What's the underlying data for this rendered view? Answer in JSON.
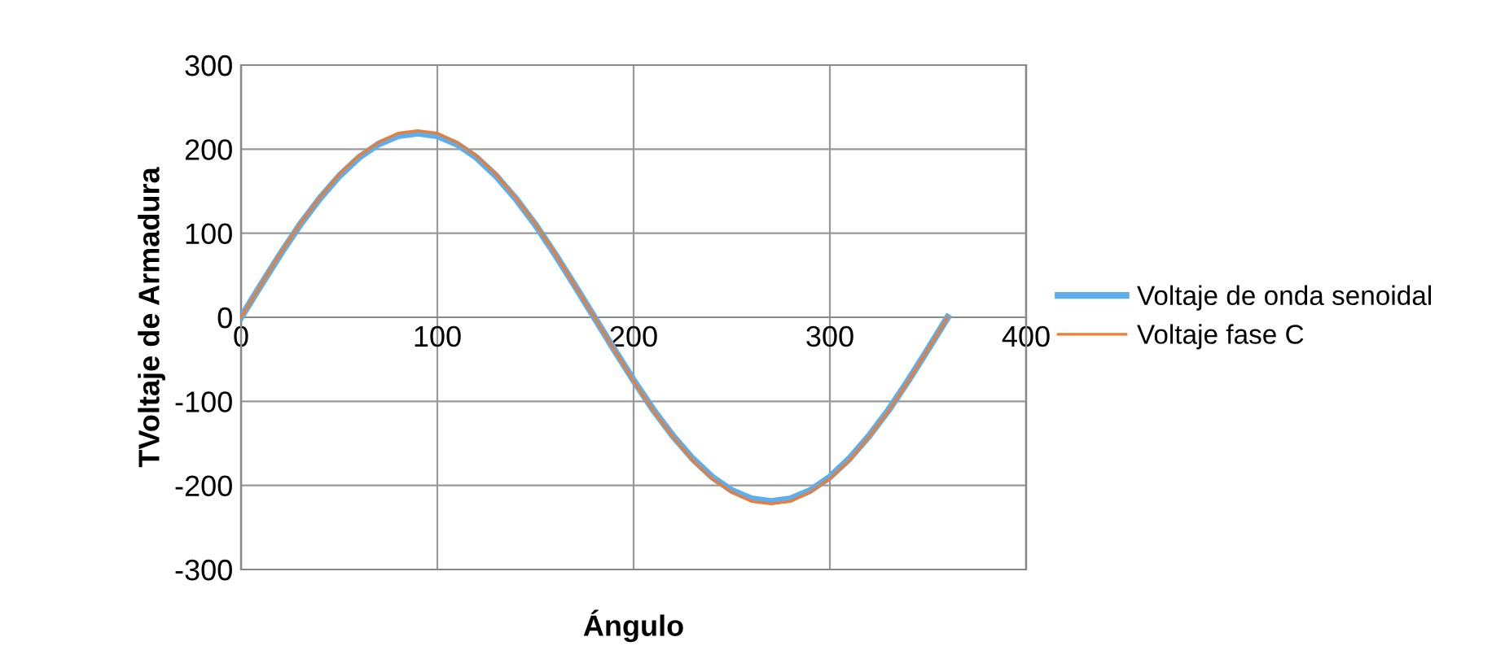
{
  "chart_data": {
    "type": "line",
    "xlabel": "Ángulo",
    "ylabel": "TVoltaje de Armadura",
    "x": [
      0,
      10,
      20,
      30,
      40,
      50,
      60,
      70,
      80,
      90,
      100,
      110,
      120,
      130,
      140,
      150,
      160,
      170,
      180,
      190,
      200,
      210,
      220,
      230,
      240,
      250,
      260,
      270,
      280,
      290,
      300,
      310,
      320,
      330,
      340,
      350,
      360
    ],
    "series": [
      {
        "name": "Voltaje de onda senoidal",
        "color": "#5eaeed",
        "values": [
          0,
          38,
          75,
          110,
          141,
          168,
          190,
          206,
          216,
          219,
          216,
          206,
          190,
          168,
          141,
          110,
          75,
          38,
          0,
          -38,
          -75,
          -110,
          -141,
          -168,
          -190,
          -206,
          -216,
          -219,
          -216,
          -206,
          -190,
          -168,
          -141,
          -110,
          -75,
          -38,
          0
        ]
      },
      {
        "name": "Voltaje fase C",
        "color": "#ed7d31",
        "values": [
          0,
          38,
          76,
          111,
          142,
          170,
          192,
          208,
          219,
          222,
          219,
          208,
          192,
          170,
          142,
          111,
          76,
          38,
          0,
          -38,
          -76,
          -111,
          -142,
          -170,
          -192,
          -208,
          -219,
          -222,
          -219,
          -208,
          -192,
          -170,
          -142,
          -111,
          -76,
          -38,
          0
        ]
      }
    ],
    "xlim": [
      0,
      400
    ],
    "xticks": [
      0,
      100,
      200,
      300,
      400
    ],
    "ylim": [
      -300,
      300
    ],
    "yticks": [
      -300,
      -200,
      -100,
      0,
      100,
      200,
      300
    ],
    "grid": true,
    "legend": "right",
    "marker": "none",
    "line_style": "solid"
  }
}
